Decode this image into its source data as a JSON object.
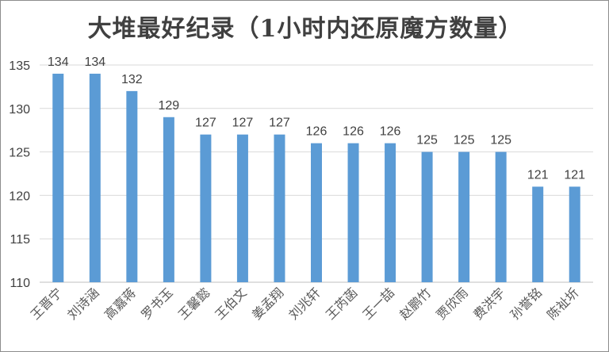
{
  "chart_data": {
    "type": "bar",
    "title": "大堆最好纪录（1小时内还原魔方数量）",
    "xlabel": "",
    "ylabel": "",
    "ylim": [
      110,
      135
    ],
    "yticks": [
      110,
      115,
      120,
      125,
      130,
      135
    ],
    "grid": true,
    "legend": "none",
    "bar_color": "#5b9bd5",
    "categories": [
      "王晋宁",
      "刘诗涵",
      "高嘉蒋",
      "罗书玉",
      "王馨懿",
      "王伯文",
      "姜孟翔",
      "刘兆轩",
      "王芮菡",
      "王一喆",
      "赵鹏竹",
      "贾欣雨",
      "费洪宇",
      "孙誉铭",
      "陈祉圻"
    ],
    "values": [
      134,
      134,
      132,
      129,
      127,
      127,
      127,
      126,
      126,
      126,
      125,
      125,
      125,
      121,
      121
    ]
  }
}
